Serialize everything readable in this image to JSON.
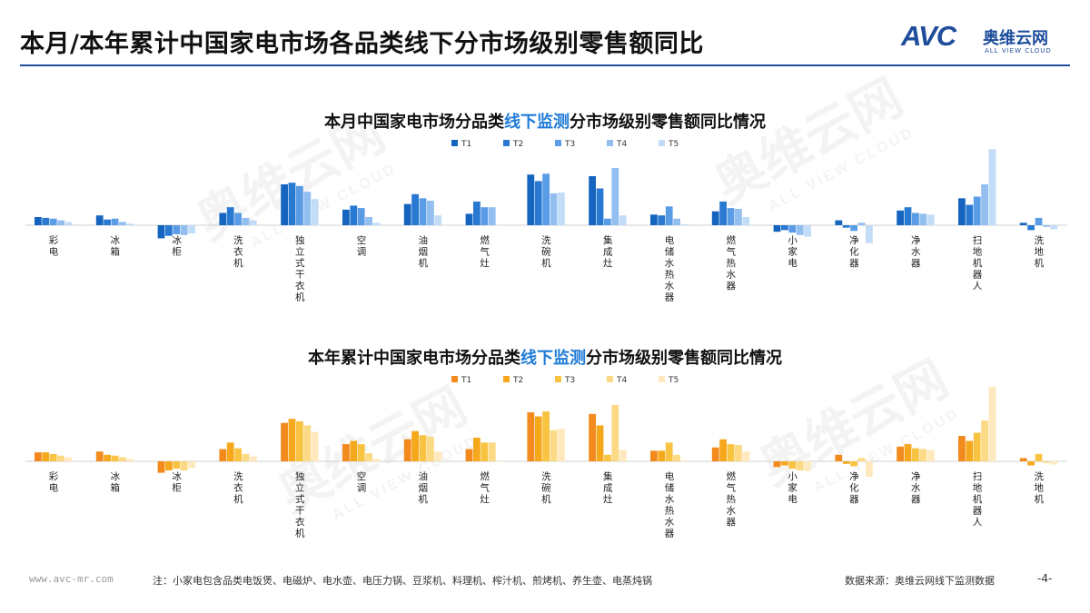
{
  "page": {
    "title": "本月/本年累计中国家电市场各品类线下分市场级别零售额同比"
  },
  "logo": {
    "main": "AVC",
    "cn": "奥维云网",
    "en": "ALL VIEW CLOUD"
  },
  "watermark": {
    "cn": "奥维云网",
    "en": "ALL VIEW CLOUD"
  },
  "chart1_title": {
    "pre": "本月中国家电市场分品类",
    "hl": "线下监测",
    "post": "分市场级别零售额同比情况"
  },
  "chart2_title": {
    "pre": "本年累计中国家电市场分品类",
    "hl": "线下监测",
    "post": "分市场级别零售额同比情况"
  },
  "footer": {
    "site": "www.avc-mr.com",
    "note": "注：小家电包含品类电饭煲、电磁炉、电水壶、电压力锅、豆浆机、料理机、榨汁机、煎烤机、养生壶、电蒸炖锅",
    "source": "数据来源：奥维云网线下监测数据",
    "page_number": "-4-"
  },
  "chart_data": [
    {
      "type": "bar",
      "title": "本月中国家电市场分品类线下监测分市场级别零售额同比情况",
      "categories": [
        "彩电",
        "冰箱",
        "冰柜",
        "洗衣机",
        "独立式干衣机",
        "空调",
        "油烟机",
        "燃气灶",
        "洗碗机",
        "集成灶",
        "电储水热水器",
        "燃气热水器",
        "小家电",
        "净化器",
        "净水器",
        "扫地机器人",
        "洗地机"
      ],
      "series": [
        {
          "name": "T1",
          "color": "#1565c0",
          "values": [
            10,
            12,
            -16,
            15,
            50,
            19,
            26,
            14,
            62,
            60,
            13,
            17,
            -8,
            6,
            18,
            33,
            3
          ]
        },
        {
          "name": "T2",
          "color": "#2979d3",
          "values": [
            9,
            7,
            -13,
            22,
            52,
            24,
            38,
            29,
            54,
            45,
            12,
            29,
            -6,
            -3,
            22,
            25,
            -6
          ]
        },
        {
          "name": "T3",
          "color": "#5a9ce6",
          "values": [
            8,
            8,
            -11,
            15,
            48,
            21,
            33,
            22,
            63,
            8,
            23,
            21,
            -9,
            -7,
            15,
            35,
            9
          ]
        },
        {
          "name": "T4",
          "color": "#92bff0",
          "values": [
            6,
            4,
            -12,
            9,
            41,
            10,
            30,
            22,
            39,
            70,
            8,
            20,
            -12,
            3,
            14,
            50,
            -2
          ]
        },
        {
          "name": "T5",
          "color": "#c3dcf7",
          "values": [
            4,
            2,
            -10,
            6,
            32,
            3,
            12,
            0,
            40,
            12,
            1,
            10,
            -14,
            -22,
            13,
            93,
            -5
          ]
        }
      ]
    },
    {
      "type": "bar",
      "title": "本年累计中国家电市场分品类线下监测分市场级别零售额同比情况",
      "categories": [
        "彩电",
        "冰箱",
        "冰柜",
        "洗衣机",
        "独立式干衣机",
        "空调",
        "油烟机",
        "燃气灶",
        "洗碗机",
        "集成灶",
        "电储水热水器",
        "燃气热水器",
        "小家电",
        "净化器",
        "净水器",
        "扫地机器人",
        "洗地机"
      ],
      "series": [
        {
          "name": "T1",
          "color": "#f28a1e",
          "values": [
            11,
            12,
            -14,
            15,
            47,
            21,
            27,
            15,
            60,
            58,
            13,
            17,
            -7,
            8,
            18,
            31,
            4
          ]
        },
        {
          "name": "T2",
          "color": "#f6a81c",
          "values": [
            11,
            8,
            -11,
            23,
            52,
            25,
            37,
            29,
            55,
            44,
            13,
            27,
            -5,
            -3,
            21,
            25,
            -5
          ]
        },
        {
          "name": "T3",
          "color": "#f8c341",
          "values": [
            9,
            7,
            -9,
            16,
            49,
            21,
            32,
            23,
            61,
            8,
            23,
            21,
            -9,
            -6,
            16,
            35,
            9
          ]
        },
        {
          "name": "T4",
          "color": "#fbd985",
          "values": [
            7,
            5,
            -11,
            9,
            44,
            10,
            30,
            23,
            38,
            69,
            8,
            20,
            -11,
            4,
            15,
            50,
            -2
          ]
        },
        {
          "name": "T5",
          "color": "#fde9bd",
          "values": [
            5,
            3,
            -8,
            6,
            36,
            3,
            12,
            0,
            40,
            14,
            1,
            12,
            -12,
            -19,
            14,
            91,
            -4
          ]
        }
      ]
    }
  ]
}
